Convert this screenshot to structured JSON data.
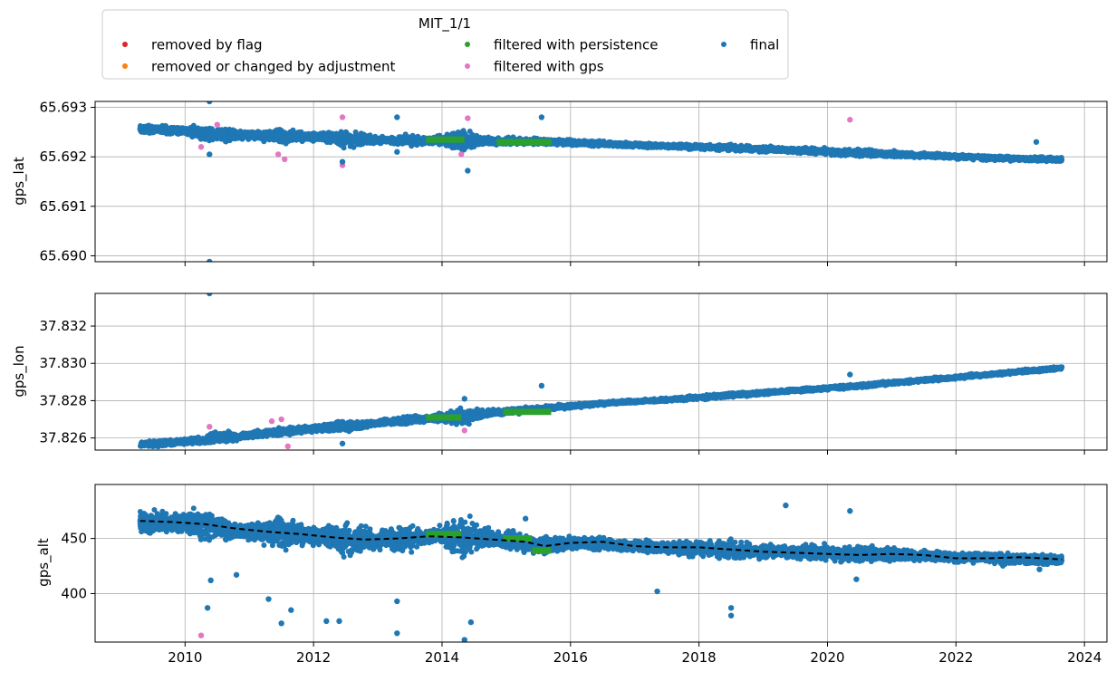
{
  "chart_data": {
    "type": "scatter",
    "legend": {
      "title": "MIT_1/1",
      "placement": "top-left",
      "entries": [
        {
          "label": "removed by flag",
          "color": "#d62728"
        },
        {
          "label": "removed or changed by adjustment",
          "color": "#ff7f0e"
        },
        {
          "label": "filtered with persistence",
          "color": "#2ca02c"
        },
        {
          "label": "filtered with gps",
          "color": "#e377c2"
        },
        {
          "label": "final",
          "color": "#1f77b4"
        }
      ]
    },
    "x_axis": {
      "label": "",
      "xlim": [
        2008.6,
        2024.35
      ],
      "ticks": [
        2010,
        2012,
        2014,
        2016,
        2018,
        2020,
        2022,
        2024
      ],
      "tick_labels": [
        "2010",
        "2012",
        "2014",
        "2016",
        "2018",
        "2020",
        "2022",
        "2024"
      ]
    },
    "grid": true,
    "panels": [
      {
        "ylabel": "gps_lat",
        "ylim": [
          65.68988,
          65.69312
        ],
        "yticks": [
          65.69,
          65.691,
          65.692,
          65.693
        ],
        "ytick_labels": [
          "65.690",
          "65.691",
          "65.692",
          "65.693"
        ],
        "final_band": [
          {
            "x": 2009.3,
            "y": 65.69257,
            "spread": 0.00012
          },
          {
            "x": 2010.0,
            "y": 65.69252,
            "spread": 0.00014
          },
          {
            "x": 2010.5,
            "y": 65.69245,
            "spread": 0.00025
          },
          {
            "x": 2011.0,
            "y": 65.69243,
            "spread": 0.00012
          },
          {
            "x": 2011.5,
            "y": 65.69242,
            "spread": 0.00022
          },
          {
            "x": 2012.0,
            "y": 65.6924,
            "spread": 0.00012
          },
          {
            "x": 2012.5,
            "y": 65.69236,
            "spread": 0.00028
          },
          {
            "x": 2013.0,
            "y": 65.69234,
            "spread": 0.0001
          },
          {
            "x": 2013.6,
            "y": 65.69233,
            "spread": 0.00018
          },
          {
            "x": 2013.8,
            "y": 65.69233,
            "spread": 0.0001
          },
          {
            "x": 2014.3,
            "y": 65.69233,
            "spread": 0.0003
          },
          {
            "x": 2014.7,
            "y": 65.69232,
            "spread": 0.00012
          },
          {
            "x": 2015.6,
            "y": 65.69231,
            "spread": 0.0001
          },
          {
            "x": 2016.5,
            "y": 65.69226,
            "spread": 8e-05
          },
          {
            "x": 2017.5,
            "y": 65.69222,
            "spread": 7e-05
          },
          {
            "x": 2018.5,
            "y": 65.69218,
            "spread": 0.0001
          },
          {
            "x": 2019.5,
            "y": 65.69213,
            "spread": 8e-05
          },
          {
            "x": 2020.5,
            "y": 65.69208,
            "spread": 0.00012
          },
          {
            "x": 2021.5,
            "y": 65.69203,
            "spread": 8e-05
          },
          {
            "x": 2022.5,
            "y": 65.69198,
            "spread": 8e-05
          },
          {
            "x": 2023.65,
            "y": 65.69194,
            "spread": 8e-05
          }
        ],
        "persistence_segments": [
          {
            "x0": 2013.75,
            "x1": 2014.35,
            "y": 65.69235
          },
          {
            "x0": 2014.85,
            "x1": 2015.7,
            "y": 65.6923
          }
        ],
        "outliers": [
          {
            "x": 2010.38,
            "y": 65.69312,
            "series": "final"
          },
          {
            "x": 2010.38,
            "y": 65.68988,
            "series": "final"
          },
          {
            "x": 2010.38,
            "y": 65.69205,
            "series": "final"
          },
          {
            "x": 2010.25,
            "y": 65.6922,
            "series": "filtered with gps"
          },
          {
            "x": 2010.5,
            "y": 65.69265,
            "series": "filtered with gps"
          },
          {
            "x": 2011.45,
            "y": 65.69205,
            "series": "filtered with gps"
          },
          {
            "x": 2011.55,
            "y": 65.69195,
            "series": "filtered with gps"
          },
          {
            "x": 2012.45,
            "y": 65.6928,
            "series": "filtered with gps"
          },
          {
            "x": 2012.45,
            "y": 65.69183,
            "series": "filtered with gps"
          },
          {
            "x": 2012.45,
            "y": 65.6919,
            "series": "final"
          },
          {
            "x": 2013.3,
            "y": 65.6928,
            "series": "final"
          },
          {
            "x": 2013.3,
            "y": 65.6921,
            "series": "final"
          },
          {
            "x": 2014.3,
            "y": 65.69205,
            "series": "filtered with gps"
          },
          {
            "x": 2014.4,
            "y": 65.69278,
            "series": "filtered with gps"
          },
          {
            "x": 2014.4,
            "y": 65.69172,
            "series": "final"
          },
          {
            "x": 2015.55,
            "y": 65.6928,
            "series": "final"
          },
          {
            "x": 2020.35,
            "y": 65.69275,
            "series": "filtered with gps"
          },
          {
            "x": 2023.25,
            "y": 65.6923,
            "series": "final"
          }
        ]
      },
      {
        "ylabel": "gps_lon",
        "ylim": [
          37.82535,
          37.83375
        ],
        "yticks": [
          37.826,
          37.828,
          37.83,
          37.832
        ],
        "ytick_labels": [
          "37.826",
          "37.828",
          "37.830",
          "37.832"
        ],
        "final_band": [
          {
            "x": 2009.3,
            "y": 37.82565,
            "spread": 0.00025
          },
          {
            "x": 2010.0,
            "y": 37.8258,
            "spread": 0.00025
          },
          {
            "x": 2010.5,
            "y": 37.826,
            "spread": 0.0005
          },
          {
            "x": 2011.0,
            "y": 37.82615,
            "spread": 0.00025
          },
          {
            "x": 2011.5,
            "y": 37.82635,
            "spread": 0.0004
          },
          {
            "x": 2012.0,
            "y": 37.8265,
            "spread": 0.00025
          },
          {
            "x": 2012.5,
            "y": 37.82665,
            "spread": 0.0005
          },
          {
            "x": 2013.0,
            "y": 37.8268,
            "spread": 0.0002
          },
          {
            "x": 2013.6,
            "y": 37.827,
            "spread": 0.0004
          },
          {
            "x": 2013.8,
            "y": 37.82705,
            "spread": 0.0002
          },
          {
            "x": 2014.3,
            "y": 37.82715,
            "spread": 0.0007
          },
          {
            "x": 2014.8,
            "y": 37.82735,
            "spread": 0.00025
          },
          {
            "x": 2015.6,
            "y": 37.8276,
            "spread": 0.0002
          },
          {
            "x": 2016.5,
            "y": 37.82785,
            "spread": 0.00015
          },
          {
            "x": 2017.5,
            "y": 37.82805,
            "spread": 0.00015
          },
          {
            "x": 2018.5,
            "y": 37.8283,
            "spread": 0.0002
          },
          {
            "x": 2019.5,
            "y": 37.82855,
            "spread": 0.00015
          },
          {
            "x": 2020.5,
            "y": 37.8288,
            "spread": 0.0002
          },
          {
            "x": 2021.5,
            "y": 37.8291,
            "spread": 0.00015
          },
          {
            "x": 2022.5,
            "y": 37.8294,
            "spread": 0.00015
          },
          {
            "x": 2023.65,
            "y": 37.82975,
            "spread": 0.00015
          }
        ],
        "persistence_segments": [
          {
            "x0": 2013.75,
            "x1": 2014.3,
            "y": 37.8271
          },
          {
            "x0": 2014.95,
            "x1": 2015.7,
            "y": 37.8274
          }
        ],
        "outliers": [
          {
            "x": 2010.38,
            "y": 37.83375,
            "series": "final"
          },
          {
            "x": 2010.38,
            "y": 37.8266,
            "series": "filtered with gps"
          },
          {
            "x": 2011.35,
            "y": 37.8269,
            "series": "filtered with gps"
          },
          {
            "x": 2011.5,
            "y": 37.827,
            "series": "filtered with gps"
          },
          {
            "x": 2011.6,
            "y": 37.82555,
            "series": "filtered with gps"
          },
          {
            "x": 2012.45,
            "y": 37.8257,
            "series": "final"
          },
          {
            "x": 2014.35,
            "y": 37.8264,
            "series": "filtered with gps"
          },
          {
            "x": 2014.35,
            "y": 37.8281,
            "series": "final"
          },
          {
            "x": 2015.55,
            "y": 37.8288,
            "series": "final"
          },
          {
            "x": 2020.35,
            "y": 37.8294,
            "series": "final"
          }
        ]
      },
      {
        "ylabel": "gps_alt",
        "ylim": [
          356,
          499
        ],
        "yticks": [
          400,
          450
        ],
        "ytick_labels": [
          "400",
          "450"
        ],
        "final_band": [
          {
            "x": 2009.3,
            "y": 466,
            "spread": 18
          },
          {
            "x": 2009.8,
            "y": 464,
            "spread": 14
          },
          {
            "x": 2010.35,
            "y": 462,
            "spread": 22
          },
          {
            "x": 2010.9,
            "y": 456,
            "spread": 10
          },
          {
            "x": 2011.5,
            "y": 455,
            "spread": 22
          },
          {
            "x": 2012.0,
            "y": 452,
            "spread": 12
          },
          {
            "x": 2012.5,
            "y": 450,
            "spread": 26
          },
          {
            "x": 2013.0,
            "y": 448,
            "spread": 12
          },
          {
            "x": 2013.4,
            "y": 450,
            "spread": 24
          },
          {
            "x": 2013.8,
            "y": 452,
            "spread": 10
          },
          {
            "x": 2014.3,
            "y": 452,
            "spread": 28
          },
          {
            "x": 2014.8,
            "y": 450,
            "spread": 12
          },
          {
            "x": 2015.5,
            "y": 444,
            "spread": 14
          },
          {
            "x": 2016.0,
            "y": 446,
            "spread": 9
          },
          {
            "x": 2016.8,
            "y": 444,
            "spread": 8
          },
          {
            "x": 2017.5,
            "y": 442,
            "spread": 9
          },
          {
            "x": 2018.4,
            "y": 440,
            "spread": 14
          },
          {
            "x": 2019.2,
            "y": 438,
            "spread": 8
          },
          {
            "x": 2020.3,
            "y": 436,
            "spread": 12
          },
          {
            "x": 2021.2,
            "y": 435,
            "spread": 8
          },
          {
            "x": 2022.0,
            "y": 433,
            "spread": 7
          },
          {
            "x": 2022.8,
            "y": 432,
            "spread": 9
          },
          {
            "x": 2023.65,
            "y": 430,
            "spread": 7
          }
        ],
        "mean_line": [
          {
            "x": 2009.3,
            "y": 466
          },
          {
            "x": 2009.8,
            "y": 465
          },
          {
            "x": 2010.3,
            "y": 463
          },
          {
            "x": 2010.8,
            "y": 459
          },
          {
            "x": 2011.3,
            "y": 456
          },
          {
            "x": 2011.8,
            "y": 454
          },
          {
            "x": 2012.3,
            "y": 451
          },
          {
            "x": 2012.8,
            "y": 449
          },
          {
            "x": 2013.3,
            "y": 450
          },
          {
            "x": 2013.8,
            "y": 452
          },
          {
            "x": 2014.3,
            "y": 451
          },
          {
            "x": 2014.8,
            "y": 449
          },
          {
            "x": 2015.3,
            "y": 447
          },
          {
            "x": 2015.6,
            "y": 443
          },
          {
            "x": 2016.0,
            "y": 446
          },
          {
            "x": 2016.5,
            "y": 447
          },
          {
            "x": 2017.0,
            "y": 443
          },
          {
            "x": 2017.5,
            "y": 442
          },
          {
            "x": 2018.0,
            "y": 442
          },
          {
            "x": 2018.5,
            "y": 440
          },
          {
            "x": 2019.0,
            "y": 438
          },
          {
            "x": 2019.5,
            "y": 437
          },
          {
            "x": 2020.0,
            "y": 436
          },
          {
            "x": 2020.5,
            "y": 435
          },
          {
            "x": 2021.0,
            "y": 436
          },
          {
            "x": 2021.5,
            "y": 435
          },
          {
            "x": 2022.0,
            "y": 432
          },
          {
            "x": 2022.5,
            "y": 432
          },
          {
            "x": 2023.0,
            "y": 433
          },
          {
            "x": 2023.65,
            "y": 431
          }
        ],
        "persistence_segments": [
          {
            "x0": 2013.75,
            "x1": 2014.3,
            "y": 454
          },
          {
            "x0": 2014.95,
            "x1": 2015.4,
            "y": 450
          },
          {
            "x0": 2015.4,
            "x1": 2015.7,
            "y": 439
          }
        ],
        "outliers": [
          {
            "x": 2010.25,
            "y": 362,
            "series": "filtered with gps"
          },
          {
            "x": 2010.35,
            "y": 387,
            "series": "final"
          },
          {
            "x": 2010.4,
            "y": 412,
            "series": "final"
          },
          {
            "x": 2010.8,
            "y": 417,
            "series": "final"
          },
          {
            "x": 2011.3,
            "y": 395,
            "series": "final"
          },
          {
            "x": 2011.65,
            "y": 385,
            "series": "final"
          },
          {
            "x": 2011.5,
            "y": 373,
            "series": "final"
          },
          {
            "x": 2012.2,
            "y": 375,
            "series": "final"
          },
          {
            "x": 2012.4,
            "y": 375,
            "series": "final"
          },
          {
            "x": 2013.3,
            "y": 364,
            "series": "final"
          },
          {
            "x": 2013.3,
            "y": 393,
            "series": "final"
          },
          {
            "x": 2014.35,
            "y": 358,
            "series": "final"
          },
          {
            "x": 2014.45,
            "y": 374,
            "series": "final"
          },
          {
            "x": 2015.3,
            "y": 468,
            "series": "final"
          },
          {
            "x": 2017.35,
            "y": 402,
            "series": "final"
          },
          {
            "x": 2018.5,
            "y": 380,
            "series": "final"
          },
          {
            "x": 2018.5,
            "y": 387,
            "series": "final"
          },
          {
            "x": 2019.35,
            "y": 480,
            "series": "final"
          },
          {
            "x": 2020.35,
            "y": 475,
            "series": "final"
          },
          {
            "x": 2020.45,
            "y": 413,
            "series": "final"
          },
          {
            "x": 2023.3,
            "y": 422,
            "series": "final"
          }
        ]
      }
    ]
  }
}
